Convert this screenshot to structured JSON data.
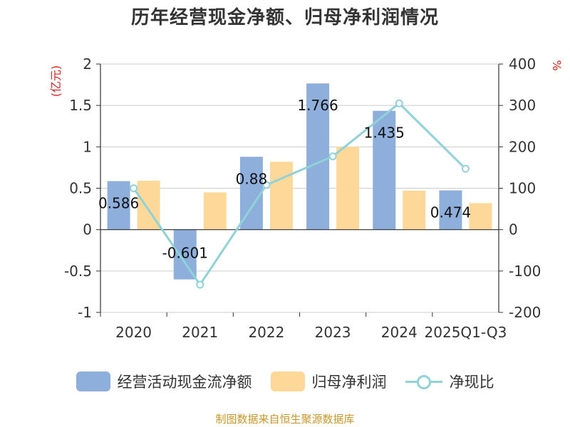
{
  "title": "历年经营现金净额、归母净利润情况",
  "source": "制图数据来自恒生聚源数据库",
  "chart_data": {
    "type": "bar",
    "title": "历年经营现金净额、归母净利润情况",
    "categories": [
      "2020",
      "2021",
      "2022",
      "2023",
      "2024",
      "2025Q1-Q3"
    ],
    "series": [
      {
        "name": "经营活动现金流净额",
        "type": "bar",
        "axis": "left",
        "color": "#8eaedc",
        "values": [
          0.586,
          -0.601,
          0.88,
          1.766,
          1.435,
          0.474
        ],
        "labels": [
          "0.586",
          "-0.601",
          "0.88",
          "1.766",
          "1.435",
          "0.474"
        ]
      },
      {
        "name": "归母净利润",
        "type": "bar",
        "axis": "left",
        "color": "#fed899",
        "values": [
          0.59,
          0.45,
          0.82,
          1.0,
          0.47,
          0.32
        ]
      },
      {
        "name": "净现比",
        "type": "line",
        "axis": "right",
        "color": "#8fd2d8",
        "values": [
          100,
          -133,
          108,
          177,
          305,
          147
        ]
      }
    ],
    "left_axis": {
      "label": "(亿元)",
      "ylim": [
        -1,
        2
      ],
      "ticks": [
        2,
        1.5,
        1,
        0.5,
        0,
        -0.5,
        -1
      ],
      "tick_labels": [
        "2",
        "1.5",
        "1",
        "0.5",
        "0",
        "-0.5",
        "-1"
      ]
    },
    "right_axis": {
      "label": "%",
      "ylim": [
        -200,
        400
      ],
      "ticks": [
        400,
        300,
        200,
        100,
        0,
        -100,
        -200
      ],
      "tick_labels": [
        "400",
        "300",
        "200",
        "100",
        "0",
        "-100",
        "-200"
      ]
    },
    "grid": true,
    "legend_position": "bottom"
  }
}
